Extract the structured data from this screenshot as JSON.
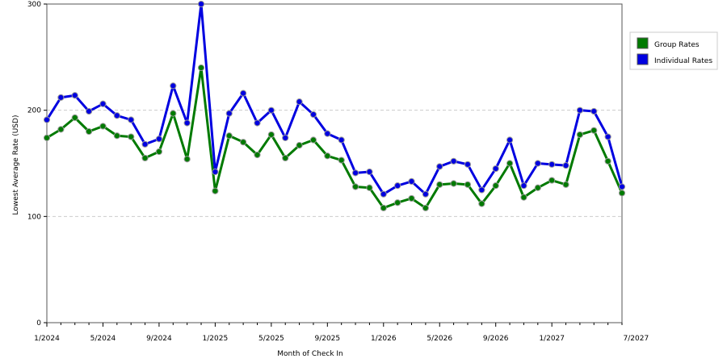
{
  "chart_data": {
    "type": "line",
    "xlabel": "Month of Check In",
    "ylabel": "Lowest Average Rate (USD)",
    "ylim": [
      0,
      300
    ],
    "yticks": [
      0,
      100,
      200,
      300
    ],
    "grid": "horizontal dashed",
    "legend_position": "right",
    "x_tick_labels": [
      "1/2024",
      "5/2024",
      "9/2024",
      "1/2025",
      "5/2025",
      "9/2025",
      "1/2026",
      "5/2026",
      "9/2026",
      "1/2027",
      "7/2027"
    ],
    "x_tick_month_index": [
      0,
      4,
      8,
      12,
      16,
      20,
      24,
      28,
      32,
      36,
      42
    ],
    "series": [
      {
        "name": "Group Rates",
        "color": "#007a00",
        "values": [
          174,
          182,
          193,
          180,
          185,
          176,
          175,
          155,
          161,
          197,
          154,
          240,
          124,
          176,
          170,
          158,
          177,
          155,
          167,
          172,
          157,
          153,
          128,
          127,
          108,
          113,
          117,
          108,
          130,
          131,
          130,
          112,
          129,
          150,
          118,
          127,
          134,
          130,
          177,
          181,
          152,
          122
        ]
      },
      {
        "name": "Individual Rates",
        "color": "#0000e0",
        "values": [
          191,
          212,
          214,
          199,
          206,
          195,
          191,
          168,
          173,
          223,
          188,
          300,
          142,
          197,
          216,
          188,
          200,
          174,
          208,
          196,
          178,
          172,
          141,
          142,
          121,
          129,
          133,
          121,
          147,
          152,
          149,
          125,
          145,
          172,
          129,
          150,
          149,
          148,
          200,
          199,
          175,
          128
        ]
      }
    ]
  }
}
